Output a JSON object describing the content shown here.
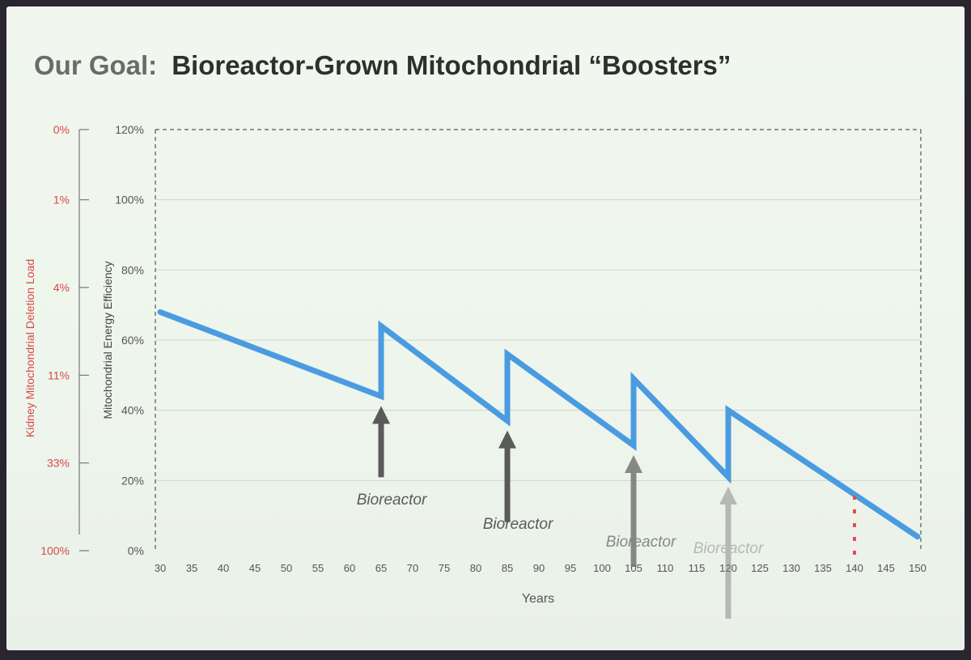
{
  "slide": {
    "title_prefix": "Our Goal:",
    "title_main": "Bioreactor-Grown Mitochondrial “Boosters”"
  },
  "chart_data": {
    "type": "line",
    "title": "",
    "xlabel": "Years",
    "ylabel": "Mitochondrial Energy Efficiency",
    "y2label": "Kidney Mitochondrial Deletion Load",
    "x_ticks": [
      30,
      35,
      40,
      45,
      50,
      55,
      60,
      65,
      70,
      75,
      80,
      85,
      90,
      95,
      100,
      105,
      110,
      115,
      120,
      125,
      130,
      135,
      140,
      145,
      150
    ],
    "xlim": [
      30,
      150
    ],
    "ylim": [
      0,
      120
    ],
    "y_ticks": [
      "0%",
      "20%",
      "40%",
      "60%",
      "80%",
      "100%",
      "120%"
    ],
    "y_tick_values": [
      0,
      20,
      40,
      60,
      80,
      100,
      120
    ],
    "y2_ticks": [
      "0%",
      "1%",
      "4%",
      "11%",
      "33%",
      "100%"
    ],
    "y2_tick_at_y": [
      120,
      100,
      75,
      50,
      25,
      0
    ],
    "grid": true,
    "series": [
      {
        "x": [
          30,
          65,
          65,
          85,
          85,
          105,
          105,
          120,
          120,
          150
        ],
        "y": [
          68,
          44,
          64,
          37,
          56,
          30,
          49,
          21,
          40,
          4
        ]
      }
    ],
    "arrows": [
      {
        "x": 65,
        "label": "Bioreactor",
        "color": "#5a5a5a",
        "opacity": 1.0
      },
      {
        "x": 85,
        "label": "Bioreactor",
        "color": "#5a5a5a",
        "opacity": 1.0
      },
      {
        "x": 105,
        "label": "Bioreactor",
        "color": "#6e6e6e",
        "opacity": 0.8
      },
      {
        "x": 120,
        "label": "Bioreactor",
        "color": "#8a8a8a",
        "opacity": 0.55
      }
    ],
    "marker_x": 140,
    "colors": {
      "line": "#4a9be0",
      "arrow": "#5a5a5a",
      "y2": "#d84848",
      "marker": "#e05050",
      "grid": "#cfd6cf",
      "frame": "#555555"
    }
  }
}
